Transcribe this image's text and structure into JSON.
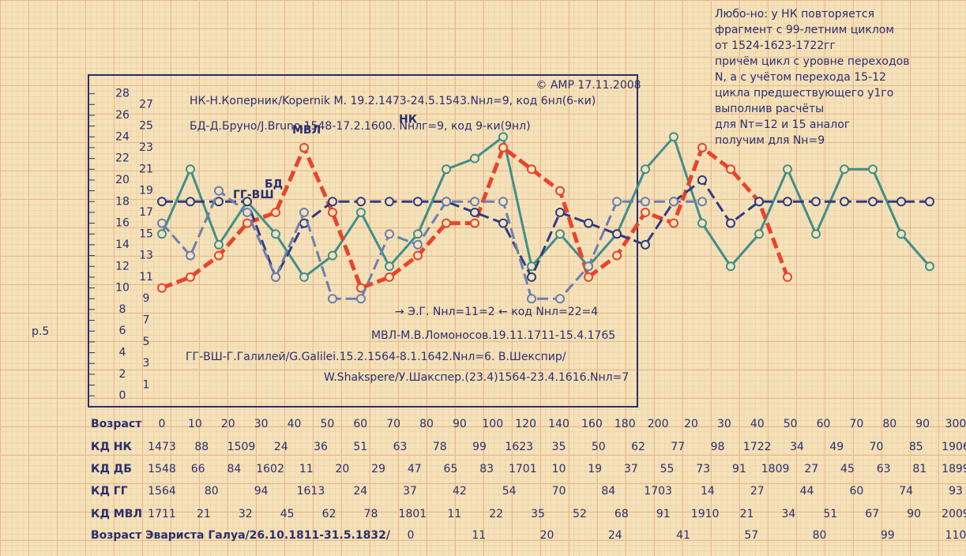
{
  "chart_data": {
    "type": "line",
    "stamp": "© АМР 17.11.2008",
    "categories": [
      null,
      null,
      null,
      null,
      null,
      null,
      null,
      null,
      null,
      null,
      null,
      null,
      null,
      null,
      null,
      null,
      null,
      null,
      null,
      null,
      null,
      null,
      null,
      null,
      null,
      null,
      null,
      null,
      null
    ],
    "ylim": [
      0,
      29
    ],
    "yticks": [
      0,
      1,
      2,
      3,
      4,
      5,
      6,
      7,
      8,
      9,
      10,
      11,
      12,
      13,
      14,
      15,
      16,
      17,
      18,
      19,
      20,
      21,
      22,
      23,
      24,
      25,
      26,
      27,
      28
    ],
    "series": [
      {
        "name": "НК",
        "color": "#3f8f8a",
        "values": [
          15,
          21,
          14,
          18,
          15,
          11,
          13,
          17,
          12,
          15,
          21,
          22,
          24,
          12,
          15,
          12,
          15,
          21,
          24,
          16,
          12,
          15,
          21,
          15,
          21,
          21,
          15,
          12,
          null
        ]
      },
      {
        "name": "МВЛ",
        "color": "#e8442c",
        "values": [
          10,
          11,
          13,
          16,
          17,
          23,
          17,
          10,
          11,
          13,
          16,
          16,
          23,
          21,
          19,
          11,
          13,
          17,
          16,
          23,
          21,
          18,
          11,
          null,
          null,
          null,
          null,
          null,
          null
        ]
      },
      {
        "name": "БД",
        "color": "#2e3c80",
        "values": [
          18,
          18,
          18,
          18,
          11,
          16,
          18,
          18,
          18,
          18,
          18,
          17,
          16,
          11,
          17,
          16,
          15,
          14,
          18,
          20,
          16,
          18,
          18,
          18,
          18,
          18,
          18,
          18,
          null
        ]
      },
      {
        "name": "ГГ-ВШ",
        "color": "#6a7fb0",
        "values": [
          16,
          13,
          19,
          17,
          11,
          17,
          9,
          9,
          15,
          14,
          18,
          18,
          18,
          9,
          9,
          12,
          18,
          18,
          18,
          18,
          null,
          null,
          null,
          null,
          null,
          null,
          null,
          null,
          null
        ]
      }
    ],
    "info": [
      "НК-Н.Коперник/Kopernik M. 19.2.1473-24.5.1543.Nнл=9, код 6нл(6-ки)",
      "БД-Д.Бруно/J.Bruno.1548-17.2.1600. Nнлг=9, код 9-ки(9нл)",
      "→ Э.Г. Nнл=11=2 ← код     Nнл=22=4",
      "МВЛ-М.В.Ломоносов.19.11.1711-15.4.1765",
      "ГГ-ВШ-Г.Галилей/G.Galilei.15.2.1564-8.1.1642.Nнл=6. В.Шекспир/",
      "W.Shakspere/У.Шакспер.(23.4)1564-23.4.1616.Nнл=7"
    ],
    "notes": [
      "Любо-но: у НК повторяется",
      "фрагмент с 99-летним циклом",
      "от 1524-1623-1722гг",
      "причём цикл с уровне переходов",
      "N, а с учётом перехода 15-12",
      "цикла предшествующего у1го",
      "выполнив расчёты",
      "для Nт=12 и 15 аналог",
      "получим для Nн=9",
      "p.5"
    ],
    "table": {
      "rows": [
        {
          "label": "Возраст",
          "cells": [
            "0",
            "10",
            "20",
            "30",
            "40",
            "50",
            "60",
            "70",
            "80",
            "90",
            "100",
            "120",
            "140",
            "160",
            "180",
            "200",
            "20",
            "30",
            "40",
            "50",
            "60",
            "70",
            "80",
            "90",
            "300"
          ]
        },
        {
          "label": "КД НК",
          "cells": [
            "1473",
            "88",
            "1509",
            "24",
            "36",
            "51",
            "63",
            "78",
            "99",
            "1623",
            "35",
            "50",
            "62",
            "77",
            "98",
            "1722",
            "34",
            "49",
            "70",
            "85",
            "1906"
          ]
        },
        {
          "label": "КД ДБ",
          "cells": [
            "1548",
            "66",
            "84",
            "1602",
            "11",
            "20",
            "29",
            "47",
            "65",
            "83",
            "1701",
            "10",
            "19",
            "37",
            "55",
            "73",
            "91",
            "1809",
            "27",
            "45",
            "63",
            "81",
            "1899"
          ]
        },
        {
          "label": "КД ГГ",
          "cells": [
            "1564",
            "80",
            "94",
            "1613",
            "24",
            "37",
            "42",
            "54",
            "70",
            "84",
            "1703",
            "14",
            "27",
            "44",
            "60",
            "74",
            "93"
          ]
        },
        {
          "label": "КД МВЛ",
          "cells": [
            "1711",
            "21",
            "32",
            "45",
            "62",
            "78",
            "1801",
            "11",
            "22",
            "35",
            "52",
            "68",
            "91",
            "1910",
            "21",
            "34",
            "51",
            "67",
            "90",
            "2009"
          ]
        },
        {
          "label": "Возраст Эвариста Галуа/26.10.1811-31.5.1832/",
          "cells": [
            "0",
            "11",
            "20",
            "24",
            "41",
            "57",
            "80",
            "99",
            "110"
          ]
        }
      ]
    }
  }
}
